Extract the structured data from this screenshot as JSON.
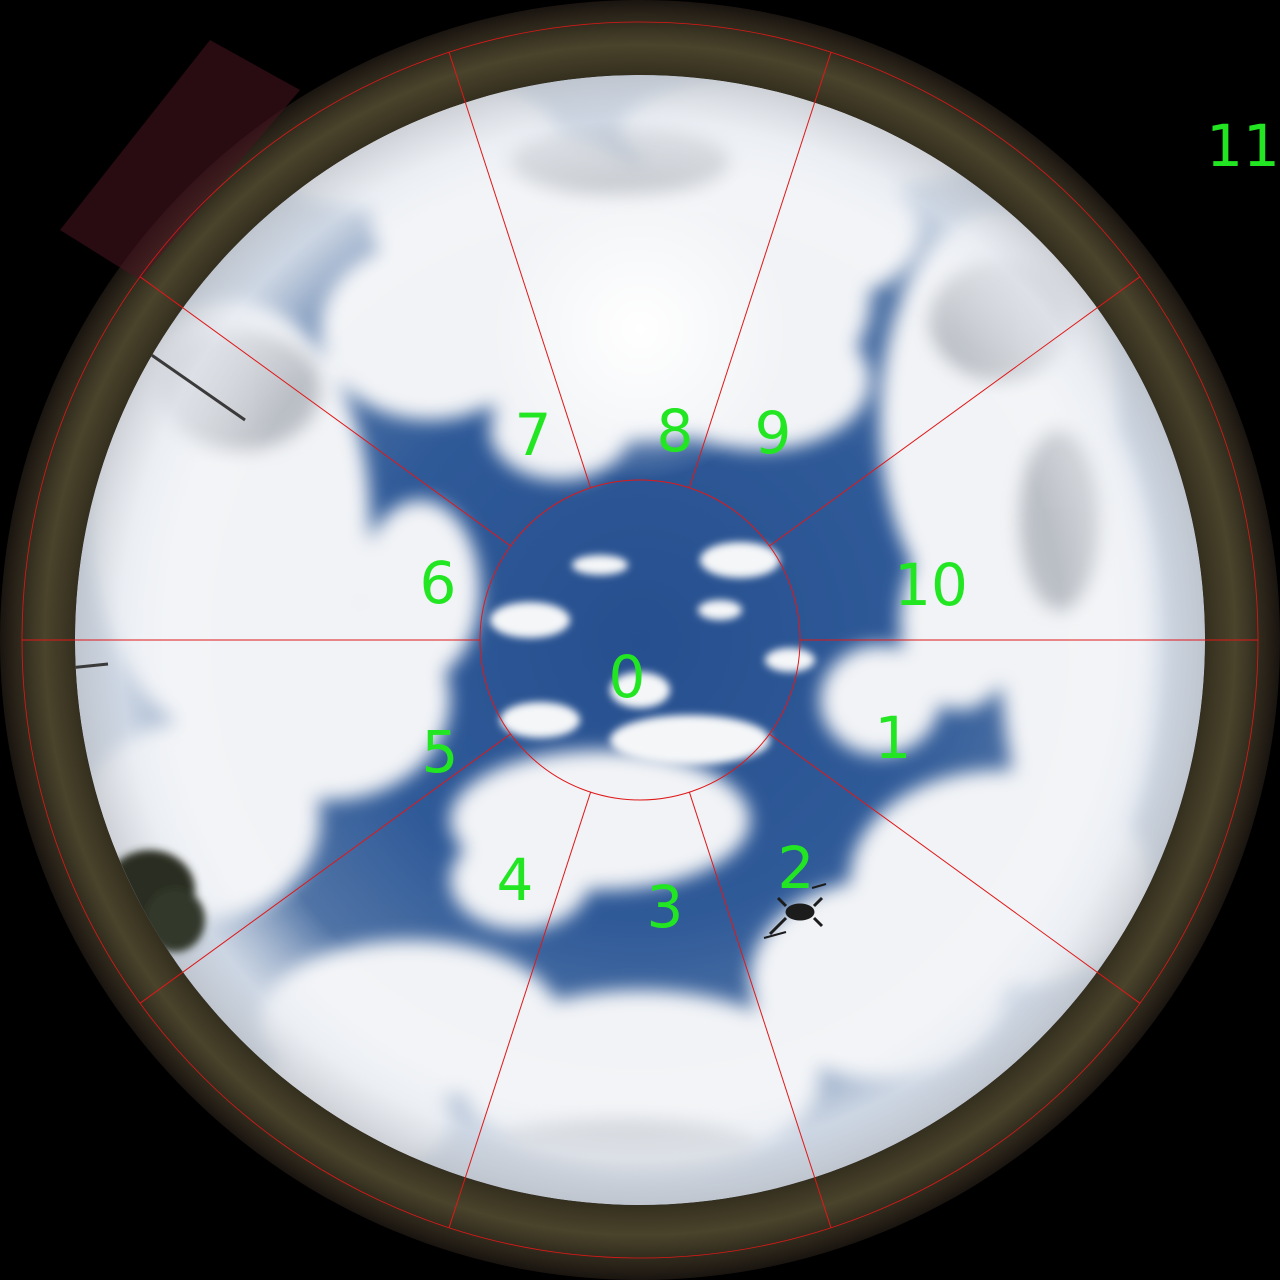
{
  "image": {
    "description_type": "all-sky fisheye camera frame with sector overlay",
    "colors": {
      "background": "#000000",
      "sky": "#2d5a99",
      "cloud": "#f2f4f6",
      "lens_rim": "#3e3a2a",
      "grid_lines": "#e01818",
      "labels": "#22e622"
    }
  },
  "sectors": {
    "labels": [
      "0",
      "1",
      "2",
      "3",
      "4",
      "5",
      "6",
      "7",
      "8",
      "9",
      "10",
      "11"
    ]
  },
  "icons": {
    "drone": "drone-icon",
    "tree": "tree-icon"
  }
}
